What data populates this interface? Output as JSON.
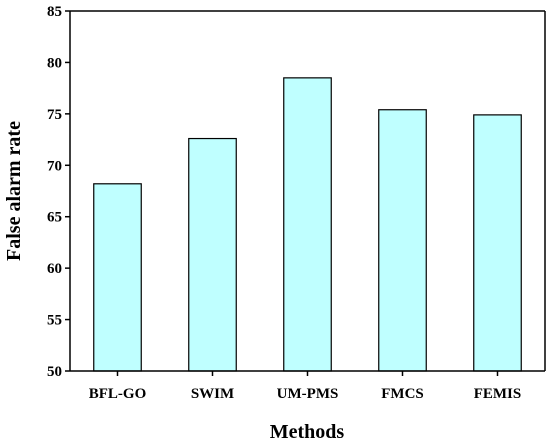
{
  "chart_data": {
    "type": "bar",
    "title": "",
    "xlabel": "Methods",
    "ylabel": "False alarm rate",
    "categories": [
      "BFL-GO",
      "SWIM",
      "UM-PMS",
      "FMCS",
      "FEMIS"
    ],
    "values": [
      68.2,
      72.6,
      78.5,
      75.4,
      74.9
    ],
    "ylim": [
      50,
      85
    ],
    "yticks": [
      "50",
      "55",
      "60",
      "65",
      "70",
      "75",
      "80",
      "85"
    ],
    "grid": false,
    "legend": "none",
    "bar_color": "#bfffff",
    "edge_color": "#000000"
  }
}
